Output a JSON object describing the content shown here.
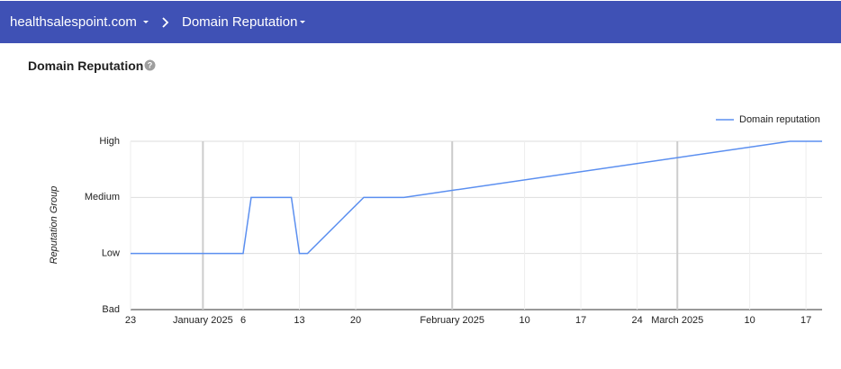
{
  "header": {
    "domain": "healthsalespoint.com",
    "section": "Domain Reputation"
  },
  "panel": {
    "title": "Domain Reputation"
  },
  "chart_data": {
    "type": "line",
    "y_label": "Reputation Group",
    "x": [
      "2024-12-23",
      "2025-01-06",
      "2025-01-07",
      "2025-01-12",
      "2025-01-13",
      "2025-01-14",
      "2025-01-21",
      "2025-01-26",
      "2025-03-15",
      "2025-03-19"
    ],
    "series": [
      {
        "name": "Domain reputation",
        "color": "#5b8ff0",
        "values": [
          1,
          1,
          2,
          2,
          1,
          1,
          2,
          2,
          3,
          3
        ]
      }
    ],
    "xlim": [
      "2024-12-23",
      "2025-03-19"
    ],
    "xticks": [
      {
        "value": "2024-12-23",
        "label": "23"
      },
      {
        "value": "2025-01-01",
        "label": "January 2025"
      },
      {
        "value": "2025-01-06",
        "label": "6"
      },
      {
        "value": "2025-01-13",
        "label": "13"
      },
      {
        "value": "2025-01-20",
        "label": "20"
      },
      {
        "value": "2025-02-01",
        "label": "February 2025"
      },
      {
        "value": "2025-02-10",
        "label": "10"
      },
      {
        "value": "2025-02-17",
        "label": "17"
      },
      {
        "value": "2025-02-24",
        "label": "24"
      },
      {
        "value": "2025-03-01",
        "label": "March 2025"
      },
      {
        "value": "2025-03-10",
        "label": "10"
      },
      {
        "value": "2025-03-17",
        "label": "17"
      }
    ],
    "ylim": [
      0,
      3
    ],
    "yticks": [
      {
        "value": 0,
        "label": "Bad"
      },
      {
        "value": 1,
        "label": "Low"
      },
      {
        "value": 2,
        "label": "Medium"
      },
      {
        "value": 3,
        "label": "High"
      }
    ],
    "grid": true,
    "legend": "top-right"
  }
}
